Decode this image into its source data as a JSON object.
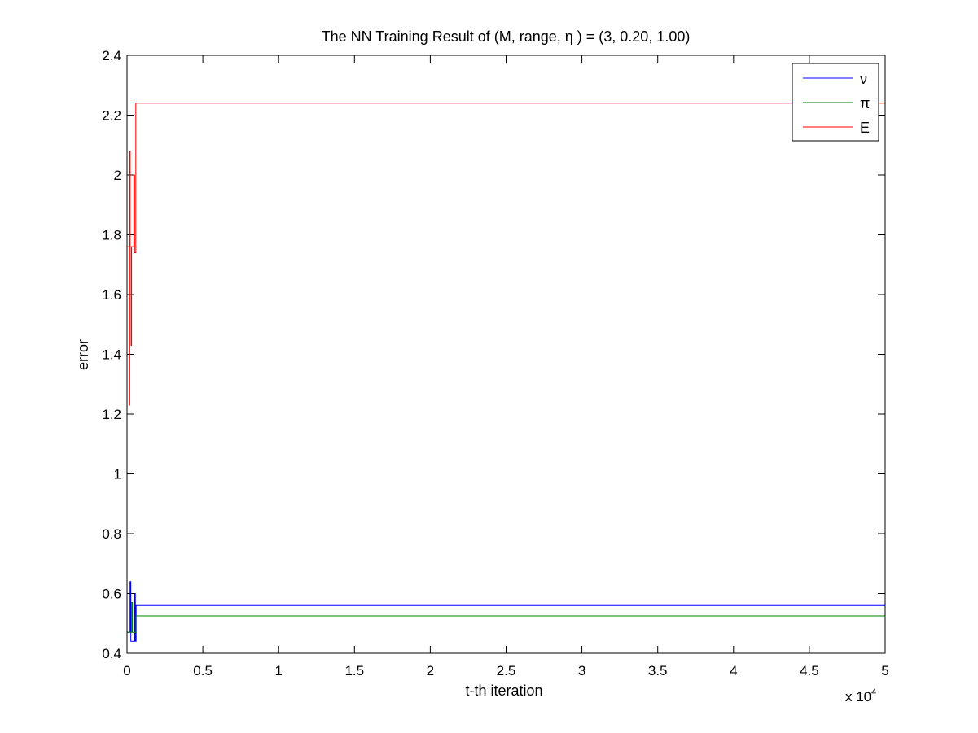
{
  "chart_data": {
    "type": "line",
    "title": "The NN Training Result of (M, range, η ) = (3, 0.20, 1.00)",
    "xlabel": "t-th iteration",
    "ylabel": "error",
    "x_multiplier": {
      "base": "x 10",
      "exponent": "4"
    },
    "xlim": [
      0,
      5
    ],
    "ylim": [
      0.4,
      2.4
    ],
    "x_ticks": [
      0,
      0.5,
      1,
      1.5,
      2,
      2.5,
      3,
      3.5,
      4,
      4.5,
      5
    ],
    "x_tick_labels": [
      "0",
      "0.5",
      "1",
      "1.5",
      "2",
      "2.5",
      "3",
      "3.5",
      "4",
      "4.5",
      "5"
    ],
    "y_ticks": [
      0.4,
      0.6,
      0.8,
      1.0,
      1.2,
      1.4,
      1.6,
      1.8,
      2.0,
      2.2,
      2.4
    ],
    "y_tick_labels": [
      "0.4",
      "0.6",
      "0.8",
      "1",
      "1.2",
      "1.4",
      "1.6",
      "1.8",
      "2",
      "2.2",
      "2.4"
    ],
    "grid": false,
    "legend_position": "top-right",
    "series": [
      {
        "name": "ν",
        "color": "#0000ff",
        "points": [
          [
            0,
            0.47
          ],
          [
            0.02,
            0.47
          ],
          [
            0.02,
            0.64
          ],
          [
            0.025,
            0.64
          ],
          [
            0.025,
            0.44
          ],
          [
            0.05,
            0.44
          ],
          [
            0.05,
            0.6
          ],
          [
            0.055,
            0.6
          ],
          [
            0.055,
            0.44
          ],
          [
            0.06,
            0.44
          ],
          [
            0.06,
            0.56
          ],
          [
            5,
            0.56
          ]
        ]
      },
      {
        "name": "π",
        "color": "#008000",
        "points": [
          [
            0,
            0.47
          ],
          [
            0.03,
            0.47
          ],
          [
            0.03,
            0.57
          ],
          [
            0.035,
            0.57
          ],
          [
            0.035,
            0.47
          ],
          [
            0.06,
            0.47
          ],
          [
            0.06,
            0.525
          ],
          [
            5,
            0.525
          ]
        ]
      },
      {
        "name": "E",
        "color": "#ff0000",
        "points": [
          [
            0,
            1.76
          ],
          [
            0.015,
            1.76
          ],
          [
            0.015,
            1.23
          ],
          [
            0.018,
            1.23
          ],
          [
            0.018,
            2.08
          ],
          [
            0.021,
            2.08
          ],
          [
            0.021,
            1.76
          ],
          [
            0.027,
            1.76
          ],
          [
            0.027,
            1.43
          ],
          [
            0.03,
            1.43
          ],
          [
            0.03,
            1.76
          ],
          [
            0.045,
            1.76
          ],
          [
            0.045,
            2.0
          ],
          [
            0.05,
            2.0
          ],
          [
            0.05,
            1.74
          ],
          [
            0.058,
            1.74
          ],
          [
            0.058,
            2.24
          ],
          [
            5,
            2.24
          ]
        ]
      }
    ]
  }
}
